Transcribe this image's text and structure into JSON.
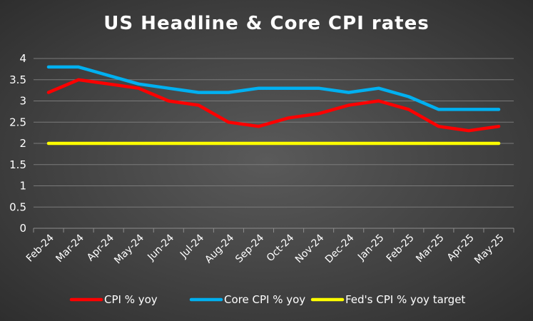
{
  "chart_data": {
    "type": "line",
    "title": "US Headline & Core CPI rates",
    "categories": [
      "Feb-24",
      "Mar-24",
      "Apr-24",
      "May-24",
      "Jun-24",
      "Jul-24",
      "Aug-24",
      "Sep-24",
      "Oct-24",
      "Nov-24",
      "Dec-24",
      "Jan-25",
      "Feb-25",
      "Mar-25",
      "Apr-25",
      "May-25"
    ],
    "y_ticks": [
      "0",
      "0.5",
      "1",
      "1.5",
      "2",
      "2.5",
      "3",
      "3.5",
      "4"
    ],
    "ylim": [
      0,
      4
    ],
    "grid": true,
    "legend_position": "bottom",
    "series": [
      {
        "name": "CPI % yoy",
        "color": "#ff0000",
        "values": [
          3.2,
          3.5,
          3.4,
          3.3,
          3.0,
          2.9,
          2.5,
          2.4,
          2.6,
          2.7,
          2.9,
          3.0,
          2.8,
          2.4,
          2.3,
          2.4
        ]
      },
      {
        "name": "Core CPI % yoy",
        "color": "#00b0f0",
        "values": [
          3.8,
          3.8,
          3.6,
          3.4,
          3.3,
          3.2,
          3.2,
          3.3,
          3.3,
          3.3,
          3.2,
          3.3,
          3.1,
          2.8,
          2.8,
          2.8
        ]
      },
      {
        "name": "Fed's CPI % yoy target",
        "color": "#ffff00",
        "values": [
          2,
          2,
          2,
          2,
          2,
          2,
          2,
          2,
          2,
          2,
          2,
          2,
          2,
          2,
          2,
          2
        ]
      }
    ]
  }
}
